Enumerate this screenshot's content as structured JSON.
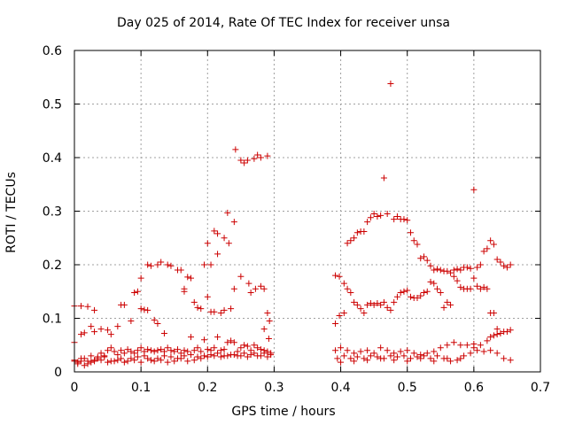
{
  "chart_data": {
    "type": "scatter",
    "title": "Day 025 of 2014, Rate Of TEC Index for receiver unsa",
    "xlabel": "GPS time / hours",
    "ylabel": "ROTI / TECUs",
    "xlim": [
      0,
      0.7
    ],
    "ylim": [
      0,
      0.6
    ],
    "xticks": [
      "0",
      "0.1",
      "0.2",
      "0.3",
      "0.4",
      "0.5",
      "0.6",
      "0.7"
    ],
    "yticks": [
      "0",
      "0.1",
      "0.2",
      "0.3",
      "0.4",
      "0.5",
      "0.6"
    ],
    "grid": true,
    "marker": "+",
    "color": "#cc0000",
    "points": [
      [
        0.0,
        0.123
      ],
      [
        0.01,
        0.123
      ],
      [
        0.02,
        0.122
      ],
      [
        0.03,
        0.115
      ],
      [
        0.0,
        0.055
      ],
      [
        0.01,
        0.07
      ],
      [
        0.015,
        0.073
      ],
      [
        0.025,
        0.085
      ],
      [
        0.03,
        0.075
      ],
      [
        0.04,
        0.08
      ],
      [
        0.05,
        0.078
      ],
      [
        0.055,
        0.07
      ],
      [
        0.065,
        0.085
      ],
      [
        0.07,
        0.125
      ],
      [
        0.075,
        0.125
      ],
      [
        0.085,
        0.095
      ],
      [
        0.09,
        0.148
      ],
      [
        0.095,
        0.15
      ],
      [
        0.1,
        0.118
      ],
      [
        0.1,
        0.175
      ],
      [
        0.105,
        0.116
      ],
      [
        0.11,
        0.115
      ],
      [
        0.11,
        0.2
      ],
      [
        0.115,
        0.198
      ],
      [
        0.12,
        0.097
      ],
      [
        0.125,
        0.2
      ],
      [
        0.125,
        0.09
      ],
      [
        0.13,
        0.205
      ],
      [
        0.135,
        0.072
      ],
      [
        0.14,
        0.2
      ],
      [
        0.145,
        0.198
      ],
      [
        0.155,
        0.19
      ],
      [
        0.16,
        0.19
      ],
      [
        0.165,
        0.155
      ],
      [
        0.165,
        0.15
      ],
      [
        0.17,
        0.177
      ],
      [
        0.175,
        0.175
      ],
      [
        0.18,
        0.13
      ],
      [
        0.185,
        0.12
      ],
      [
        0.19,
        0.118
      ],
      [
        0.195,
        0.2
      ],
      [
        0.2,
        0.14
      ],
      [
        0.2,
        0.24
      ],
      [
        0.205,
        0.112
      ],
      [
        0.205,
        0.2
      ],
      [
        0.21,
        0.263
      ],
      [
        0.21,
        0.112
      ],
      [
        0.215,
        0.258
      ],
      [
        0.215,
        0.22
      ],
      [
        0.22,
        0.11
      ],
      [
        0.225,
        0.25
      ],
      [
        0.225,
        0.115
      ],
      [
        0.23,
        0.297
      ],
      [
        0.232,
        0.24
      ],
      [
        0.235,
        0.118
      ],
      [
        0.24,
        0.28
      ],
      [
        0.24,
        0.155
      ],
      [
        0.242,
        0.415
      ],
      [
        0.25,
        0.395
      ],
      [
        0.25,
        0.178
      ],
      [
        0.255,
        0.39
      ],
      [
        0.26,
        0.395
      ],
      [
        0.262,
        0.165
      ],
      [
        0.265,
        0.148
      ],
      [
        0.27,
        0.398
      ],
      [
        0.272,
        0.155
      ],
      [
        0.275,
        0.405
      ],
      [
        0.28,
        0.4
      ],
      [
        0.28,
        0.16
      ],
      [
        0.285,
        0.155
      ],
      [
        0.285,
        0.08
      ],
      [
        0.29,
        0.403
      ],
      [
        0.29,
        0.11
      ],
      [
        0.293,
        0.095
      ],
      [
        0.292,
        0.062
      ],
      [
        0.0,
        0.022
      ],
      [
        0.005,
        0.018
      ],
      [
        0.01,
        0.02
      ],
      [
        0.015,
        0.025
      ],
      [
        0.02,
        0.02
      ],
      [
        0.025,
        0.03
      ],
      [
        0.03,
        0.022
      ],
      [
        0.035,
        0.028
      ],
      [
        0.04,
        0.035
      ],
      [
        0.045,
        0.03
      ],
      [
        0.05,
        0.04
      ],
      [
        0.055,
        0.045
      ],
      [
        0.06,
        0.038
      ],
      [
        0.065,
        0.032
      ],
      [
        0.07,
        0.04
      ],
      [
        0.075,
        0.035
      ],
      [
        0.08,
        0.042
      ],
      [
        0.085,
        0.038
      ],
      [
        0.09,
        0.035
      ],
      [
        0.095,
        0.04
      ],
      [
        0.1,
        0.045
      ],
      [
        0.105,
        0.038
      ],
      [
        0.11,
        0.042
      ],
      [
        0.115,
        0.04
      ],
      [
        0.12,
        0.038
      ],
      [
        0.125,
        0.04
      ],
      [
        0.13,
        0.042
      ],
      [
        0.135,
        0.038
      ],
      [
        0.14,
        0.045
      ],
      [
        0.145,
        0.04
      ],
      [
        0.15,
        0.038
      ],
      [
        0.155,
        0.042
      ],
      [
        0.16,
        0.035
      ],
      [
        0.165,
        0.04
      ],
      [
        0.17,
        0.038
      ],
      [
        0.175,
        0.065
      ],
      [
        0.18,
        0.04
      ],
      [
        0.185,
        0.045
      ],
      [
        0.19,
        0.038
      ],
      [
        0.195,
        0.06
      ],
      [
        0.2,
        0.042
      ],
      [
        0.205,
        0.04
      ],
      [
        0.21,
        0.045
      ],
      [
        0.215,
        0.065
      ],
      [
        0.22,
        0.04
      ],
      [
        0.225,
        0.042
      ],
      [
        0.23,
        0.055
      ],
      [
        0.235,
        0.058
      ],
      [
        0.24,
        0.055
      ],
      [
        0.245,
        0.038
      ],
      [
        0.25,
        0.045
      ],
      [
        0.255,
        0.05
      ],
      [
        0.26,
        0.048
      ],
      [
        0.265,
        0.04
      ],
      [
        0.27,
        0.05
      ],
      [
        0.275,
        0.045
      ],
      [
        0.28,
        0.042
      ],
      [
        0.285,
        0.04
      ],
      [
        0.29,
        0.038
      ],
      [
        0.295,
        0.035
      ],
      [
        0.0,
        0.02
      ],
      [
        0.01,
        0.025
      ],
      [
        0.02,
        0.015
      ],
      [
        0.03,
        0.02
      ],
      [
        0.04,
        0.022
      ],
      [
        0.05,
        0.018
      ],
      [
        0.06,
        0.02
      ],
      [
        0.07,
        0.025
      ],
      [
        0.08,
        0.02
      ],
      [
        0.09,
        0.022
      ],
      [
        0.1,
        0.018
      ],
      [
        0.11,
        0.025
      ],
      [
        0.12,
        0.02
      ],
      [
        0.13,
        0.022
      ],
      [
        0.14,
        0.018
      ],
      [
        0.15,
        0.02
      ],
      [
        0.16,
        0.025
      ],
      [
        0.17,
        0.02
      ],
      [
        0.18,
        0.022
      ],
      [
        0.19,
        0.025
      ],
      [
        0.2,
        0.028
      ],
      [
        0.21,
        0.03
      ],
      [
        0.22,
        0.028
      ],
      [
        0.23,
        0.03
      ],
      [
        0.24,
        0.032
      ],
      [
        0.25,
        0.03
      ],
      [
        0.26,
        0.028
      ],
      [
        0.27,
        0.035
      ],
      [
        0.28,
        0.03
      ],
      [
        0.29,
        0.028
      ],
      [
        0.005,
        0.015
      ],
      [
        0.015,
        0.012
      ],
      [
        0.025,
        0.018
      ],
      [
        0.035,
        0.025
      ],
      [
        0.045,
        0.028
      ],
      [
        0.055,
        0.02
      ],
      [
        0.065,
        0.022
      ],
      [
        0.075,
        0.018
      ],
      [
        0.085,
        0.025
      ],
      [
        0.095,
        0.028
      ],
      [
        0.105,
        0.03
      ],
      [
        0.115,
        0.022
      ],
      [
        0.125,
        0.025
      ],
      [
        0.135,
        0.03
      ],
      [
        0.145,
        0.028
      ],
      [
        0.155,
        0.025
      ],
      [
        0.165,
        0.03
      ],
      [
        0.175,
        0.032
      ],
      [
        0.185,
        0.028
      ],
      [
        0.195,
        0.03
      ],
      [
        0.205,
        0.032
      ],
      [
        0.215,
        0.035
      ],
      [
        0.225,
        0.03
      ],
      [
        0.235,
        0.032
      ],
      [
        0.245,
        0.03
      ],
      [
        0.255,
        0.035
      ],
      [
        0.265,
        0.032
      ],
      [
        0.275,
        0.03
      ],
      [
        0.285,
        0.035
      ],
      [
        0.295,
        0.032
      ],
      [
        0.392,
        0.18
      ],
      [
        0.398,
        0.178
      ],
      [
        0.405,
        0.165
      ],
      [
        0.41,
        0.155
      ],
      [
        0.415,
        0.148
      ],
      [
        0.42,
        0.13
      ],
      [
        0.425,
        0.125
      ],
      [
        0.43,
        0.118
      ],
      [
        0.435,
        0.11
      ],
      [
        0.44,
        0.125
      ],
      [
        0.445,
        0.128
      ],
      [
        0.45,
        0.125
      ],
      [
        0.455,
        0.128
      ],
      [
        0.46,
        0.125
      ],
      [
        0.465,
        0.13
      ],
      [
        0.47,
        0.12
      ],
      [
        0.475,
        0.115
      ],
      [
        0.48,
        0.13
      ],
      [
        0.485,
        0.14
      ],
      [
        0.49,
        0.148
      ],
      [
        0.495,
        0.15
      ],
      [
        0.5,
        0.152
      ],
      [
        0.505,
        0.14
      ],
      [
        0.51,
        0.138
      ],
      [
        0.515,
        0.138
      ],
      [
        0.52,
        0.142
      ],
      [
        0.525,
        0.148
      ],
      [
        0.53,
        0.15
      ],
      [
        0.535,
        0.168
      ],
      [
        0.54,
        0.165
      ],
      [
        0.545,
        0.155
      ],
      [
        0.55,
        0.148
      ],
      [
        0.555,
        0.12
      ],
      [
        0.56,
        0.13
      ],
      [
        0.565,
        0.125
      ],
      [
        0.57,
        0.178
      ],
      [
        0.575,
        0.17
      ],
      [
        0.58,
        0.158
      ],
      [
        0.585,
        0.155
      ],
      [
        0.59,
        0.155
      ],
      [
        0.595,
        0.155
      ],
      [
        0.6,
        0.175
      ],
      [
        0.605,
        0.16
      ],
      [
        0.61,
        0.155
      ],
      [
        0.615,
        0.158
      ],
      [
        0.62,
        0.155
      ],
      [
        0.625,
        0.11
      ],
      [
        0.63,
        0.11
      ],
      [
        0.635,
        0.08
      ],
      [
        0.64,
        0.072
      ],
      [
        0.645,
        0.075
      ],
      [
        0.65,
        0.075
      ],
      [
        0.655,
        0.078
      ],
      [
        0.392,
        0.09
      ],
      [
        0.398,
        0.105
      ],
      [
        0.405,
        0.11
      ],
      [
        0.41,
        0.24
      ],
      [
        0.415,
        0.245
      ],
      [
        0.42,
        0.25
      ],
      [
        0.425,
        0.26
      ],
      [
        0.43,
        0.262
      ],
      [
        0.435,
        0.262
      ],
      [
        0.44,
        0.28
      ],
      [
        0.445,
        0.288
      ],
      [
        0.45,
        0.295
      ],
      [
        0.455,
        0.29
      ],
      [
        0.46,
        0.292
      ],
      [
        0.465,
        0.362
      ],
      [
        0.47,
        0.295
      ],
      [
        0.475,
        0.538
      ],
      [
        0.48,
        0.285
      ],
      [
        0.485,
        0.29
      ],
      [
        0.49,
        0.285
      ],
      [
        0.495,
        0.285
      ],
      [
        0.5,
        0.283
      ],
      [
        0.505,
        0.26
      ],
      [
        0.51,
        0.245
      ],
      [
        0.515,
        0.238
      ],
      [
        0.52,
        0.212
      ],
      [
        0.525,
        0.215
      ],
      [
        0.53,
        0.208
      ],
      [
        0.535,
        0.198
      ],
      [
        0.54,
        0.19
      ],
      [
        0.545,
        0.192
      ],
      [
        0.55,
        0.19
      ],
      [
        0.555,
        0.188
      ],
      [
        0.56,
        0.188
      ],
      [
        0.565,
        0.185
      ],
      [
        0.57,
        0.19
      ],
      [
        0.575,
        0.192
      ],
      [
        0.58,
        0.19
      ],
      [
        0.585,
        0.195
      ],
      [
        0.59,
        0.195
      ],
      [
        0.595,
        0.193
      ],
      [
        0.6,
        0.34
      ],
      [
        0.605,
        0.195
      ],
      [
        0.61,
        0.2
      ],
      [
        0.615,
        0.225
      ],
      [
        0.62,
        0.23
      ],
      [
        0.625,
        0.245
      ],
      [
        0.63,
        0.238
      ],
      [
        0.635,
        0.21
      ],
      [
        0.64,
        0.205
      ],
      [
        0.645,
        0.198
      ],
      [
        0.65,
        0.195
      ],
      [
        0.655,
        0.2
      ],
      [
        0.392,
        0.04
      ],
      [
        0.4,
        0.045
      ],
      [
        0.41,
        0.04
      ],
      [
        0.42,
        0.035
      ],
      [
        0.43,
        0.038
      ],
      [
        0.44,
        0.04
      ],
      [
        0.45,
        0.035
      ],
      [
        0.46,
        0.045
      ],
      [
        0.47,
        0.04
      ],
      [
        0.48,
        0.035
      ],
      [
        0.49,
        0.038
      ],
      [
        0.5,
        0.04
      ],
      [
        0.51,
        0.035
      ],
      [
        0.52,
        0.032
      ],
      [
        0.53,
        0.035
      ],
      [
        0.54,
        0.038
      ],
      [
        0.55,
        0.045
      ],
      [
        0.56,
        0.05
      ],
      [
        0.57,
        0.055
      ],
      [
        0.58,
        0.05
      ],
      [
        0.59,
        0.05
      ],
      [
        0.6,
        0.052
      ],
      [
        0.61,
        0.05
      ],
      [
        0.62,
        0.058
      ],
      [
        0.625,
        0.065
      ],
      [
        0.63,
        0.068
      ],
      [
        0.635,
        0.07
      ],
      [
        0.395,
        0.025
      ],
      [
        0.405,
        0.03
      ],
      [
        0.415,
        0.025
      ],
      [
        0.425,
        0.028
      ],
      [
        0.435,
        0.025
      ],
      [
        0.445,
        0.03
      ],
      [
        0.455,
        0.028
      ],
      [
        0.465,
        0.025
      ],
      [
        0.475,
        0.03
      ],
      [
        0.485,
        0.028
      ],
      [
        0.495,
        0.03
      ],
      [
        0.505,
        0.025
      ],
      [
        0.515,
        0.028
      ],
      [
        0.525,
        0.03
      ],
      [
        0.535,
        0.025
      ],
      [
        0.545,
        0.03
      ],
      [
        0.555,
        0.025
      ],
      [
        0.565,
        0.02
      ],
      [
        0.575,
        0.022
      ],
      [
        0.585,
        0.03
      ],
      [
        0.595,
        0.035
      ],
      [
        0.605,
        0.04
      ],
      [
        0.615,
        0.038
      ],
      [
        0.625,
        0.04
      ],
      [
        0.635,
        0.035
      ],
      [
        0.645,
        0.025
      ],
      [
        0.655,
        0.022
      ],
      [
        0.4,
        0.018
      ],
      [
        0.42,
        0.02
      ],
      [
        0.44,
        0.022
      ],
      [
        0.46,
        0.025
      ],
      [
        0.48,
        0.022
      ],
      [
        0.5,
        0.02
      ],
      [
        0.52,
        0.025
      ],
      [
        0.54,
        0.02
      ],
      [
        0.56,
        0.025
      ],
      [
        0.58,
        0.025
      ],
      [
        0.6,
        0.045
      ]
    ]
  }
}
